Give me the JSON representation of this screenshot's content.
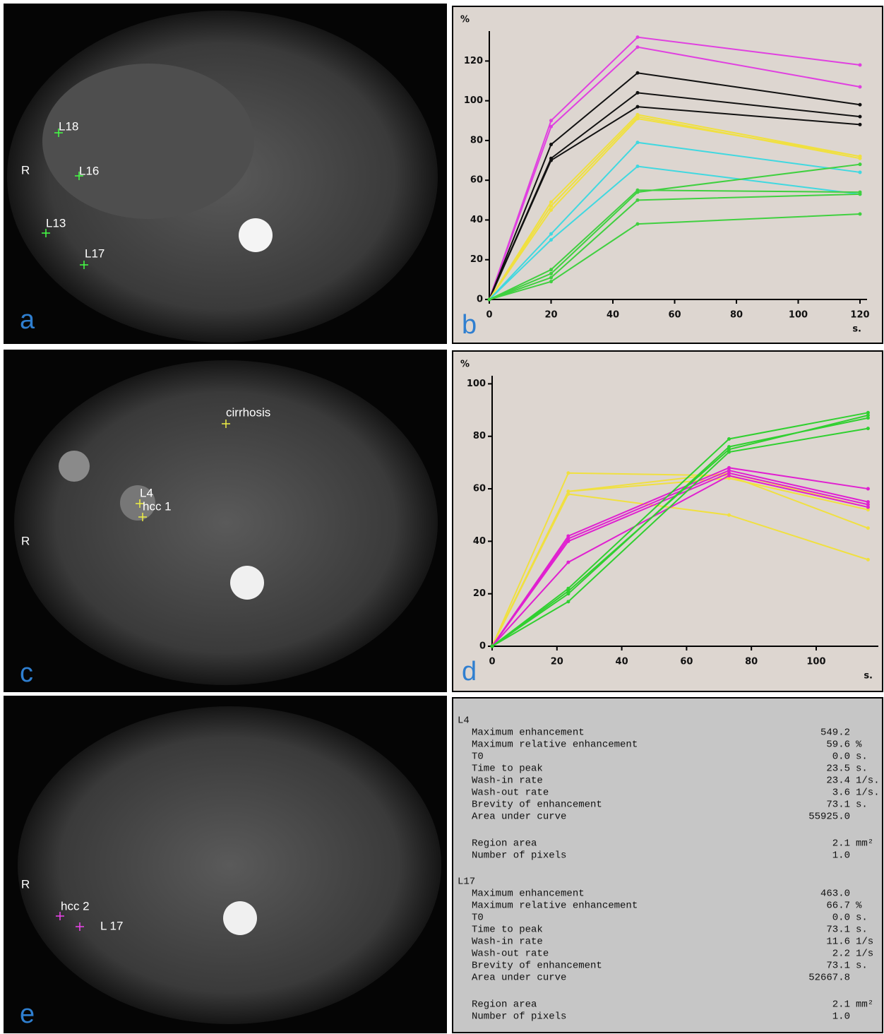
{
  "chart_data": [
    {
      "type": "line",
      "panel": "b",
      "y_label": "%",
      "x_label": "s.",
      "x": [
        0,
        20,
        48,
        120
      ],
      "xlim": [
        0,
        120
      ],
      "xticks": [
        0,
        20,
        40,
        60,
        80,
        100,
        120
      ],
      "ylim": [
        0,
        134
      ],
      "yticks": [
        0,
        20,
        40,
        60,
        80,
        100,
        120
      ],
      "series": [
        {
          "color": "#e040e0",
          "values": [
            0,
            90,
            132,
            118
          ]
        },
        {
          "color": "#e040e0",
          "values": [
            0,
            87,
            127,
            107
          ]
        },
        {
          "color": "#111111",
          "values": [
            0,
            78,
            114,
            98
          ]
        },
        {
          "color": "#111111",
          "values": [
            0,
            71,
            104,
            92
          ]
        },
        {
          "color": "#111111",
          "values": [
            0,
            70,
            97,
            88
          ]
        },
        {
          "color": "#f0e040",
          "values": [
            0,
            49,
            93,
            72
          ]
        },
        {
          "color": "#f0e040",
          "values": [
            0,
            47,
            92,
            71
          ]
        },
        {
          "color": "#f0e040",
          "values": [
            0,
            45,
            91,
            72
          ]
        },
        {
          "color": "#40d8e0",
          "values": [
            0,
            33,
            79,
            64
          ]
        },
        {
          "color": "#40d8e0",
          "values": [
            0,
            30,
            67,
            53
          ]
        },
        {
          "color": "#40d040",
          "values": [
            0,
            15,
            55,
            54
          ]
        },
        {
          "color": "#40d040",
          "values": [
            0,
            13,
            54,
            68
          ]
        },
        {
          "color": "#40d040",
          "values": [
            0,
            11,
            50,
            53
          ]
        },
        {
          "color": "#40d040",
          "values": [
            0,
            9,
            38,
            43
          ]
        }
      ]
    },
    {
      "type": "line",
      "panel": "d",
      "y_label": "%",
      "x_label": "s.",
      "x": [
        0,
        23.5,
        73.1,
        116
      ],
      "xlim": [
        0,
        117
      ],
      "xticks": [
        0,
        20,
        40,
        60,
        80,
        100
      ],
      "ylim": [
        0,
        102
      ],
      "yticks": [
        0,
        20,
        40,
        60,
        80,
        100
      ],
      "series": [
        {
          "color": "#f0e040",
          "values": [
            0,
            66,
            65,
            45
          ]
        },
        {
          "color": "#f0e040",
          "values": [
            0,
            59,
            66,
            53
          ]
        },
        {
          "color": "#f0e040",
          "values": [
            0,
            58,
            50,
            33
          ]
        },
        {
          "color": "#f0e040",
          "values": [
            0,
            59,
            64,
            52
          ]
        },
        {
          "color": "#e020d0",
          "values": [
            0,
            42,
            68,
            60
          ]
        },
        {
          "color": "#e020d0",
          "values": [
            0,
            41,
            67,
            55
          ]
        },
        {
          "color": "#e020d0",
          "values": [
            0,
            40,
            66,
            54
          ]
        },
        {
          "color": "#e020d0",
          "values": [
            0,
            32,
            65,
            53
          ]
        },
        {
          "color": "#30d030",
          "values": [
            0,
            22,
            79,
            89
          ]
        },
        {
          "color": "#30d030",
          "values": [
            0,
            21,
            75,
            88
          ]
        },
        {
          "color": "#30d030",
          "values": [
            0,
            17,
            74,
            83
          ]
        },
        {
          "color": "#30d030",
          "values": [
            0,
            20,
            76,
            87
          ]
        }
      ]
    }
  ],
  "images": [
    {
      "panel": "a",
      "labels": [
        "L18",
        "L16",
        "R",
        "L13",
        "L17"
      ]
    },
    {
      "panel": "c",
      "labels": [
        "cirrhosis",
        "L4",
        "hcc 1",
        "R"
      ]
    },
    {
      "panel": "e",
      "labels": [
        "R",
        "hcc 2",
        "L 17"
      ]
    }
  ],
  "table": {
    "blocks": [
      {
        "label": "L4",
        "rows": [
          [
            "Maximum enhancement",
            "549.2"
          ],
          [
            "Maximum relative enhancement",
            "59.6",
            "%"
          ],
          [
            "T0",
            "0.0",
            "s."
          ],
          [
            "Time to peak",
            "23.5",
            "s."
          ],
          [
            "Wash-in rate",
            "23.4",
            "1/s."
          ],
          [
            "Wash-out rate",
            "3.6",
            "1/s."
          ],
          [
            "Brevity of enhancement",
            "73.1",
            "s."
          ],
          [
            "Area under curve",
            "55925.0"
          ]
        ],
        "region_rows": [
          [
            "Region area",
            "2.1",
            "mm²"
          ],
          [
            "Number of pixels",
            "1.0"
          ]
        ]
      },
      {
        "label": "L17",
        "rows": [
          [
            "Maximum enhancement",
            "463.0"
          ],
          [
            "Maximum relative enhancement",
            "66.7",
            "%"
          ],
          [
            "T0",
            "0.0",
            "s."
          ],
          [
            "Time to peak",
            "73.1",
            "s."
          ],
          [
            "Wash-in rate",
            "11.6",
            "1/s"
          ],
          [
            "Wash-out rate",
            "2.2",
            "1/s"
          ],
          [
            "Brevity of enhancement",
            "73.1",
            "s."
          ],
          [
            "Area under curve",
            "52667.8"
          ]
        ],
        "region_rows": [
          [
            "Region area",
            "2.1",
            "mm²"
          ],
          [
            "Number of pixels",
            "1.0"
          ]
        ]
      }
    ]
  }
}
